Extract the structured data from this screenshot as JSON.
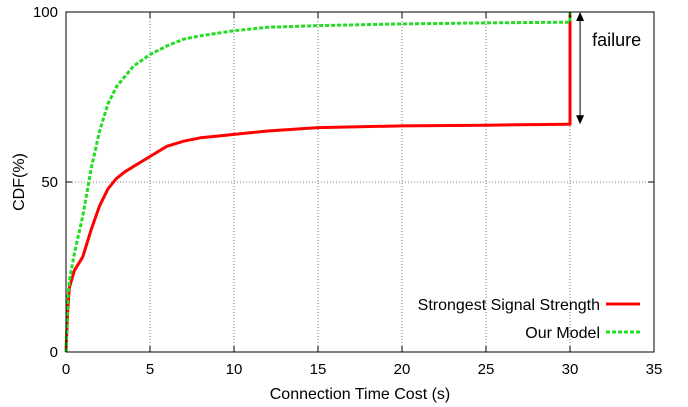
{
  "chart_data": {
    "type": "line",
    "title": "",
    "xlabel": "Connection Time Cost (s)",
    "ylabel": "CDF(%)",
    "xlim": [
      0,
      35
    ],
    "ylim": [
      0,
      100
    ],
    "xticks": [
      0,
      5,
      10,
      15,
      20,
      25,
      30,
      35
    ],
    "yticks": [
      0,
      50,
      100
    ],
    "grid": true,
    "legend": "bottom-right",
    "series": [
      {
        "name": "Strongest Signal Strength",
        "color": "#ff0000",
        "style": "solid",
        "x": [
          0,
          0.1,
          0.2,
          0.5,
          1,
          1.5,
          2,
          2.5,
          3,
          3.5,
          4,
          5,
          6,
          7,
          8,
          9,
          10,
          12,
          15,
          20,
          25,
          29.9,
          30,
          30
        ],
        "y": [
          0,
          12,
          19,
          24,
          28,
          36,
          43,
          48,
          51,
          53,
          54.5,
          57.5,
          60.5,
          62,
          63,
          63.5,
          64,
          65,
          66,
          66.5,
          66.7,
          67,
          67,
          100
        ]
      },
      {
        "name": "Our Model",
        "color": "#22dd22",
        "style": "dashed",
        "x": [
          0,
          0.1,
          0.2,
          0.5,
          1,
          1.5,
          2,
          2.5,
          3,
          4,
          5,
          6,
          7,
          8,
          10,
          12,
          15,
          20,
          25,
          29.9,
          30,
          30
        ],
        "y": [
          0,
          15,
          21,
          29,
          40,
          54,
          65,
          73,
          78,
          84,
          87.5,
          90,
          92,
          93,
          94.5,
          95.5,
          96,
          96.5,
          96.8,
          97,
          97,
          100
        ]
      }
    ],
    "annotations": [
      {
        "text": "failure",
        "x": 30.6,
        "y_from": 67,
        "y_to": 100
      }
    ]
  }
}
